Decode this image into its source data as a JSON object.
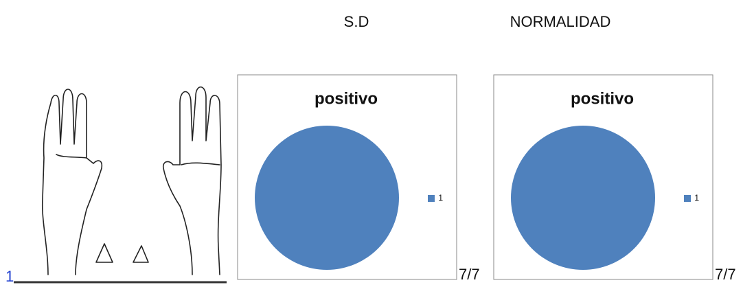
{
  "headers": [
    "S.D",
    "NORMALIDAD"
  ],
  "figure_number": "1",
  "chart_data": [
    {
      "type": "pie",
      "title": "positivo",
      "categories": [
        "1"
      ],
      "values": [
        1
      ],
      "colors": [
        "#4f81bd"
      ],
      "legend": "right"
    },
    {
      "type": "pie",
      "title": "positivo",
      "categories": [
        "1"
      ],
      "values": [
        1
      ],
      "colors": [
        "#4f81bd"
      ],
      "legend": "right"
    }
  ],
  "scores": [
    "7/7",
    "7/7"
  ]
}
